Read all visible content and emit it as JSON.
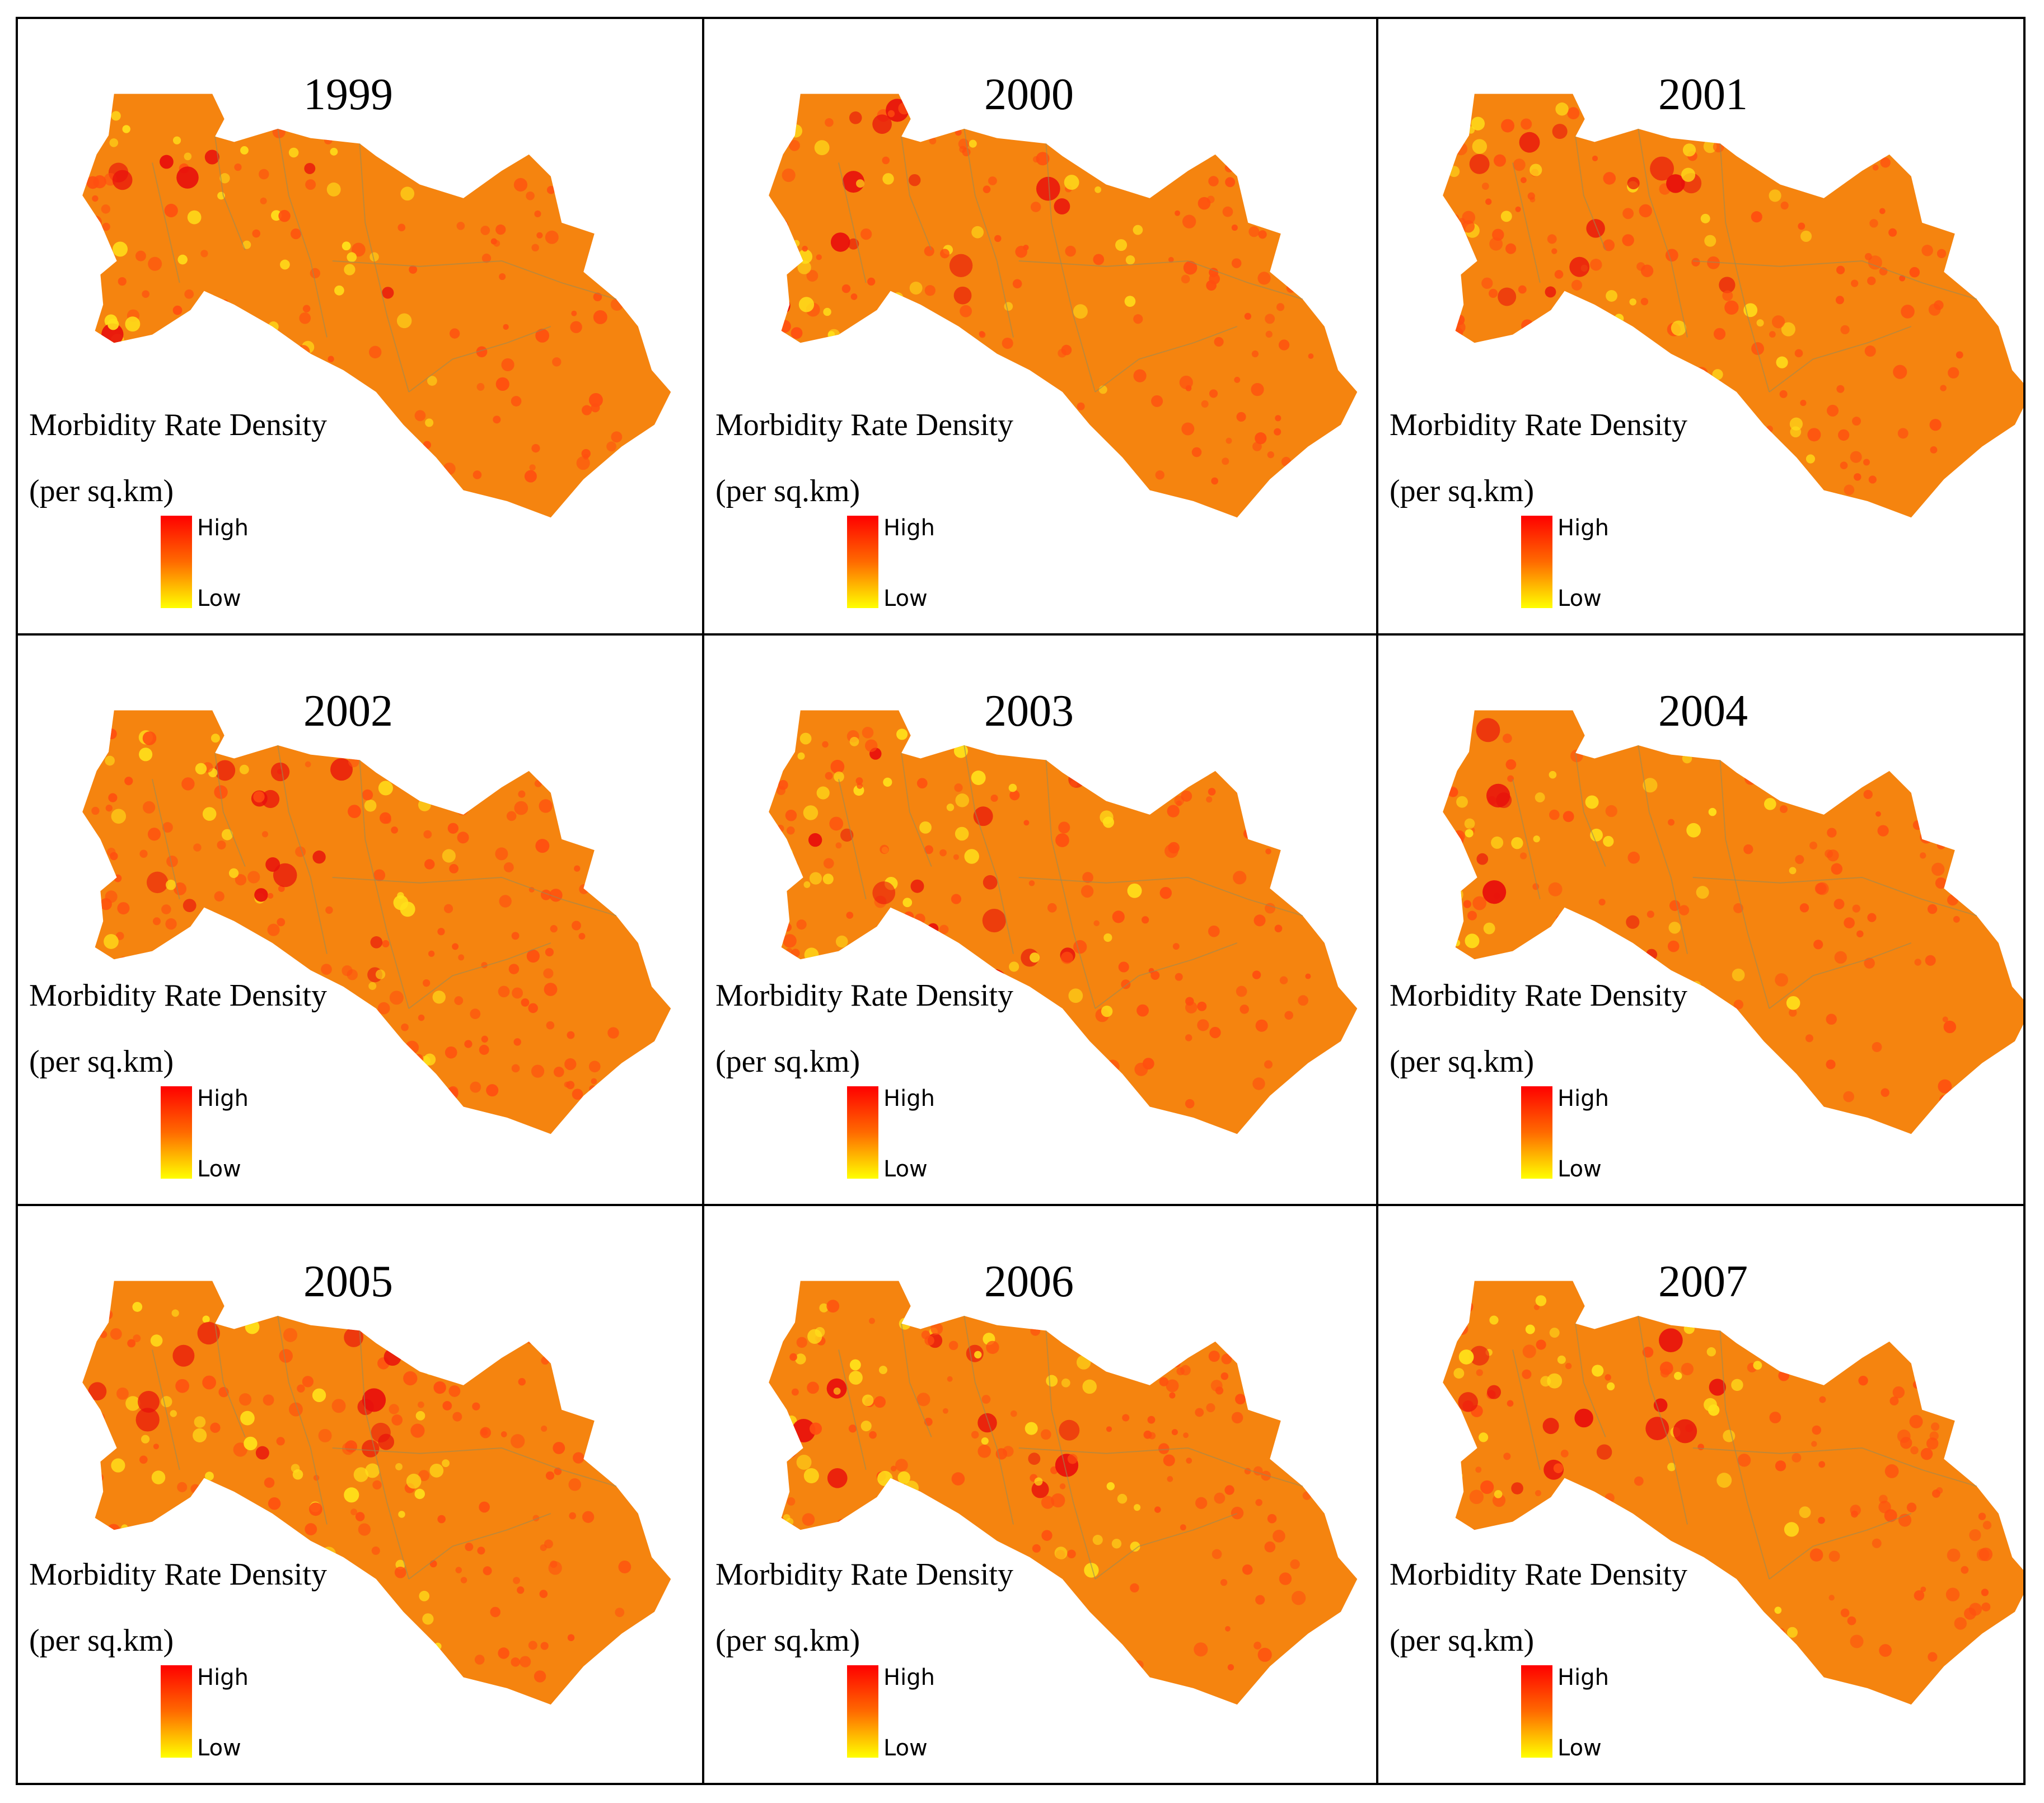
{
  "legend": {
    "title": "Morbidity Rate Density",
    "unit": "(per sq.km)",
    "high_label": "High",
    "low_label": "Low",
    "ramp_colors": [
      "#ff0000",
      "#ff6a00",
      "#ffff00"
    ]
  },
  "map_colors": {
    "base_fill": "#f5840f",
    "border": "#9a8a55",
    "hotspot": "#e8100c",
    "medium": "#ff4f10",
    "low_spot": "#ffe01a"
  },
  "panels": [
    {
      "year": "1999",
      "hotspot_level": 0.45
    },
    {
      "year": "2000",
      "hotspot_level": 0.55
    },
    {
      "year": "2001",
      "hotspot_level": 0.75
    },
    {
      "year": "2002",
      "hotspot_level": 0.8
    },
    {
      "year": "2003",
      "hotspot_level": 0.6
    },
    {
      "year": "2004",
      "hotspot_level": 0.4
    },
    {
      "year": "2005",
      "hotspot_level": 0.6
    },
    {
      "year": "2006",
      "hotspot_level": 0.8
    },
    {
      "year": "2007",
      "hotspot_level": 0.65
    }
  ]
}
